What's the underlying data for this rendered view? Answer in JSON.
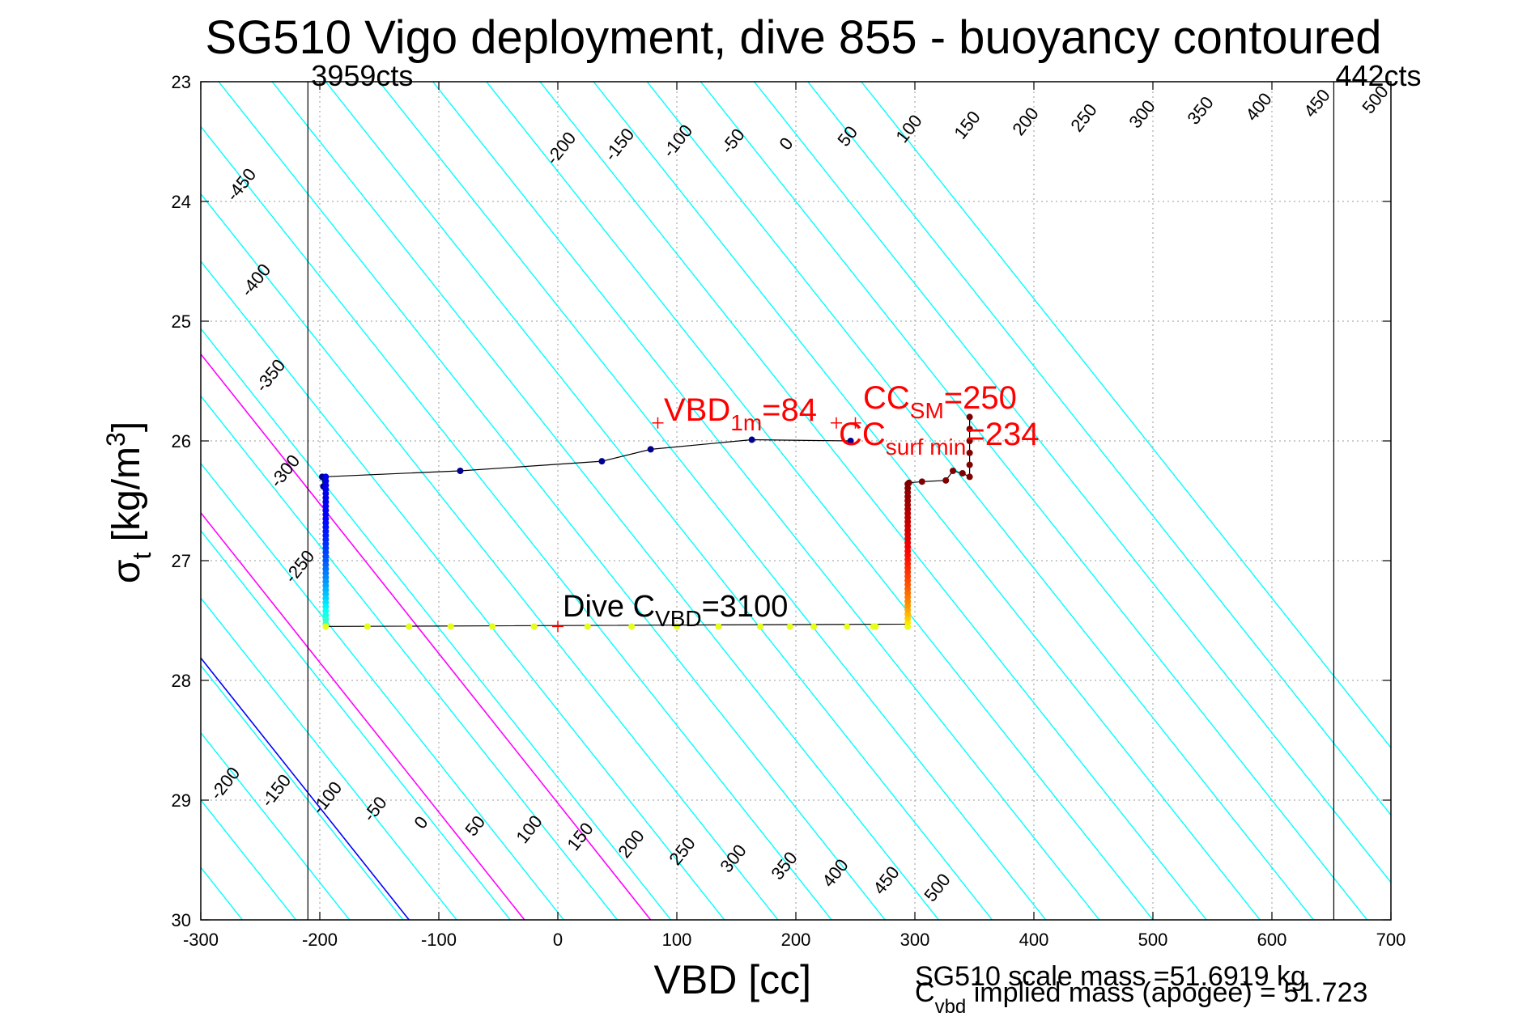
{
  "chart_data": {
    "type": "scatter",
    "title": "SG510 Vigo deployment, dive 855 - buoyancy contoured",
    "xlabel": "VBD [cc]",
    "ylabel": {
      "main": "σ",
      "sub": "t",
      "unit": " [kg/m",
      "sup": "3",
      "close": "]"
    },
    "xlim": [
      -300,
      700
    ],
    "ylim": [
      23,
      30
    ],
    "y_reversed": true,
    "grid": true,
    "xticks": [
      -300,
      -200,
      -100,
      0,
      100,
      200,
      300,
      400,
      500,
      600,
      700
    ],
    "yticks": [
      23,
      24,
      25,
      26,
      27,
      28,
      29,
      30
    ],
    "vbd_limits": [
      {
        "x": -210,
        "label": "3959cts",
        "side": "left"
      },
      {
        "x": 652,
        "label": "442cts",
        "side": "right"
      }
    ],
    "buoyancy_contours": {
      "slope_cc_per_sigma": 80,
      "x_at_sigma_30": [
        -445,
        -400,
        -355,
        -310,
        -265,
        -220,
        -175,
        -130,
        -85,
        -40,
        5,
        50,
        95,
        140,
        185,
        230,
        275,
        320,
        365,
        410,
        455,
        500,
        545,
        590,
        635,
        680,
        725,
        770,
        815
      ],
      "lower_labels": [
        -200,
        -150,
        -100,
        -50,
        0,
        50,
        100,
        150,
        200,
        250,
        300,
        350,
        400,
        450,
        500
      ],
      "upper_labels": [
        -450,
        -400,
        -350,
        -300,
        -250,
        -200,
        -150,
        -100,
        -50,
        0,
        50,
        100,
        150,
        200,
        250,
        300,
        350,
        400,
        450,
        500
      ],
      "contour_color": "#00ffff",
      "zero_color": "#0000ff",
      "cc_color": "#ff00ff"
    },
    "reference_lines": {
      "zero_x_at_sigma_30": -125,
      "cc_x_at_sigma_30": [
        -28,
        78
      ]
    },
    "dive_track": {
      "descent_points": [
        [
          -197,
          26.38
        ],
        [
          -198,
          26.3
        ],
        [
          -82,
          26.25
        ],
        [
          37,
          26.17
        ],
        [
          78,
          26.07
        ],
        [
          163,
          25.99
        ],
        [
          246,
          26.0
        ]
      ],
      "ascent_points": [
        [
          295,
          26.35
        ],
        [
          306,
          26.34
        ],
        [
          326,
          26.33
        ],
        [
          332,
          26.25
        ],
        [
          340,
          26.27
        ],
        [
          346,
          26.3
        ],
        [
          346,
          26.2
        ],
        [
          346,
          26.1
        ],
        [
          346,
          26.0
        ],
        [
          346,
          25.9
        ],
        [
          346,
          25.8
        ]
      ],
      "side_x_left": -195,
      "side_x_right": 294,
      "bottom_sigma": 27.55,
      "bottom_x": [
        -195,
        -160,
        -125,
        -90,
        -55,
        -20,
        25,
        62,
        100,
        135,
        170,
        195,
        215,
        243,
        265,
        267,
        294
      ]
    },
    "annotations": {
      "vbd_1m": {
        "name": "VBD",
        "sub": "1m",
        "value": "=84",
        "x": 84,
        "sigma": 25.85
      },
      "cc_sm": {
        "name": "CC",
        "sub": "SM",
        "value": "=250",
        "x": 250,
        "sigma": 25.85
      },
      "cc_surf": {
        "name": "CC",
        "sub": "surf min",
        "value": "=234",
        "x": 234,
        "sigma": 25.85
      },
      "dive_c": {
        "name": "Dive C",
        "sub": "VBD",
        "value": "=3100",
        "x": 0,
        "sigma": 27.55
      }
    },
    "footer": {
      "scale_mass": "SG510 scale mass =51.6919 kg",
      "implied_mass_prefix": "C",
      "implied_mass_sub": "vbd",
      "implied_mass_text": " implied mass (apogee) = 51.723"
    }
  }
}
